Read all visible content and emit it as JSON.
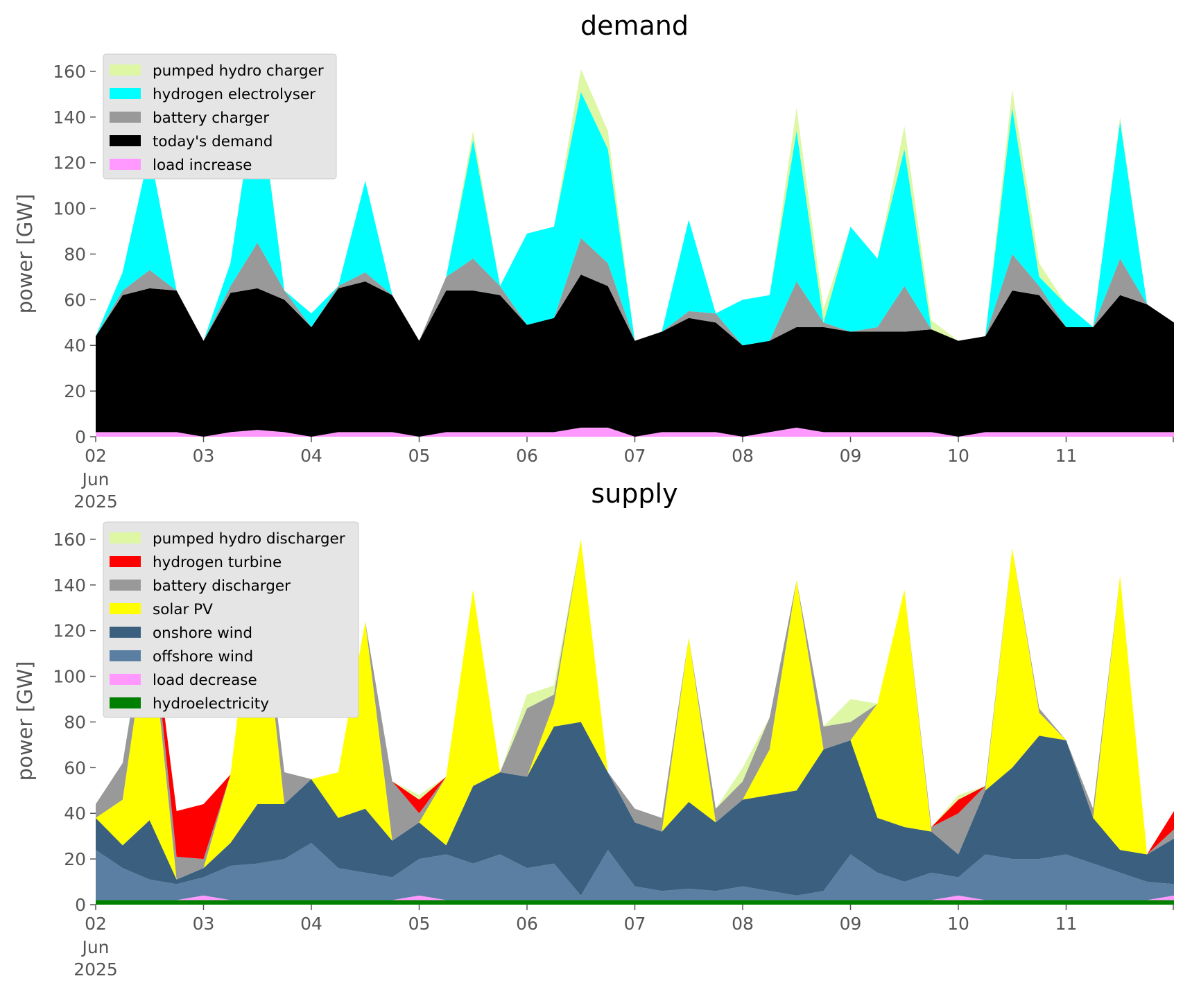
{
  "chart_data": [
    {
      "type": "area",
      "stacked": true,
      "title": "demand",
      "xlabel": "",
      "ylabel": "power [GW]",
      "x_ticks": [
        "02",
        "03",
        "04",
        "05",
        "06",
        "07",
        "08",
        "09",
        "10",
        "11"
      ],
      "x_tick_sub": [
        "Jun",
        "2025"
      ],
      "x_tick_days": [
        2,
        3,
        4,
        5,
        6,
        7,
        8,
        9,
        10,
        11
      ],
      "xlim_days": [
        2,
        12
      ],
      "y_ticks": [
        "0",
        "20",
        "40",
        "60",
        "80",
        "100",
        "120",
        "140",
        "160"
      ],
      "ylim": [
        0,
        170
      ],
      "grid": false,
      "legend": "top-left",
      "x_days": [
        2.0,
        2.25,
        2.5,
        2.75,
        3.0,
        3.25,
        3.5,
        3.75,
        4.0,
        4.25,
        4.5,
        4.75,
        5.0,
        5.25,
        5.5,
        5.75,
        6.0,
        6.25,
        6.5,
        6.75,
        7.0,
        7.25,
        7.5,
        7.75,
        8.0,
        8.25,
        8.5,
        8.75,
        9.0,
        9.25,
        9.5,
        9.75,
        10.0,
        10.25,
        10.5,
        10.75,
        11.0,
        11.25,
        11.5,
        11.75,
        12.0
      ],
      "series": [
        {
          "name": "load increase",
          "color": "#ff99ff",
          "values": [
            2,
            2,
            2,
            2,
            0,
            2,
            3,
            2,
            0,
            2,
            2,
            2,
            0,
            2,
            2,
            2,
            2,
            2,
            4,
            4,
            0,
            2,
            2,
            2,
            0,
            2,
            4,
            2,
            2,
            2,
            2,
            2,
            0,
            2,
            2,
            2,
            2,
            2,
            2,
            2,
            2
          ]
        },
        {
          "name": "today's demand",
          "color": "#000000",
          "values": [
            42,
            60,
            63,
            62,
            42,
            61,
            62,
            58,
            48,
            63,
            66,
            60,
            42,
            62,
            62,
            60,
            47,
            50,
            67,
            62,
            42,
            44,
            50,
            48,
            40,
            40,
            44,
            46,
            44,
            44,
            44,
            45,
            42,
            42,
            62,
            60,
            46,
            46,
            60,
            56,
            48
          ]
        },
        {
          "name": "battery charger",
          "color": "#999999",
          "values": [
            0,
            2,
            8,
            0,
            0,
            3,
            20,
            4,
            0,
            1,
            4,
            0,
            0,
            6,
            14,
            4,
            0,
            0,
            16,
            10,
            0,
            0,
            3,
            4,
            0,
            0,
            20,
            2,
            0,
            2,
            20,
            0,
            0,
            0,
            16,
            4,
            0,
            0,
            16,
            0,
            0
          ]
        },
        {
          "name": "hydrogen electrolyser",
          "color": "#00ffff",
          "values": [
            0,
            8,
            52,
            0,
            0,
            10,
            70,
            0,
            6,
            0,
            40,
            0,
            0,
            0,
            52,
            0,
            40,
            40,
            64,
            50,
            0,
            0,
            40,
            0,
            20,
            20,
            66,
            0,
            46,
            30,
            60,
            0,
            0,
            0,
            64,
            4,
            10,
            0,
            60,
            0,
            0
          ]
        },
        {
          "name": "pumped hydro charger",
          "color": "#ddf7a5",
          "values": [
            0,
            0,
            0,
            0,
            0,
            0,
            2,
            0,
            0,
            0,
            0,
            0,
            0,
            0,
            4,
            0,
            0,
            0,
            10,
            8,
            0,
            0,
            0,
            0,
            0,
            0,
            10,
            6,
            0,
            0,
            10,
            4,
            0,
            0,
            8,
            6,
            0,
            0,
            2,
            0,
            0
          ]
        }
      ]
    },
    {
      "type": "area",
      "stacked": true,
      "title": "supply",
      "xlabel": "",
      "ylabel": "power [GW]",
      "x_ticks": [
        "02",
        "03",
        "04",
        "05",
        "06",
        "07",
        "08",
        "09",
        "10",
        "11"
      ],
      "x_tick_sub": [
        "Jun",
        "2025"
      ],
      "x_tick_days": [
        2,
        3,
        4,
        5,
        6,
        7,
        8,
        9,
        10,
        11
      ],
      "xlim_days": [
        2,
        12
      ],
      "y_ticks": [
        "0",
        "20",
        "40",
        "60",
        "80",
        "100",
        "120",
        "140",
        "160"
      ],
      "ylim": [
        0,
        170
      ],
      "grid": false,
      "legend": "top-left",
      "x_days": [
        2.0,
        2.25,
        2.5,
        2.75,
        3.0,
        3.25,
        3.5,
        3.75,
        4.0,
        4.25,
        4.5,
        4.75,
        5.0,
        5.25,
        5.5,
        5.75,
        6.0,
        6.25,
        6.5,
        6.75,
        7.0,
        7.25,
        7.5,
        7.75,
        8.0,
        8.25,
        8.5,
        8.75,
        9.0,
        9.25,
        9.5,
        9.75,
        10.0,
        10.25,
        10.5,
        10.75,
        11.0,
        11.25,
        11.5,
        11.75,
        12.0
      ],
      "series": [
        {
          "name": "hydroelectricity",
          "color": "#008000",
          "values": [
            2,
            2,
            2,
            2,
            2,
            2,
            2,
            2,
            2,
            2,
            2,
            2,
            2,
            2,
            2,
            2,
            2,
            2,
            2,
            2,
            2,
            2,
            2,
            2,
            2,
            2,
            2,
            2,
            2,
            2,
            2,
            2,
            2,
            2,
            2,
            2,
            2,
            2,
            2,
            2,
            2
          ]
        },
        {
          "name": "load decrease",
          "color": "#ff99ff",
          "values": [
            0,
            0,
            0,
            0,
            2,
            0,
            0,
            0,
            0,
            0,
            0,
            0,
            2,
            0,
            0,
            0,
            0,
            0,
            0,
            0,
            0,
            0,
            0,
            0,
            0,
            0,
            0,
            0,
            0,
            0,
            0,
            0,
            2,
            0,
            0,
            0,
            0,
            0,
            0,
            0,
            2
          ]
        },
        {
          "name": "offshore wind",
          "color": "#5b7fa3",
          "values": [
            22,
            14,
            9,
            7,
            8,
            15,
            16,
            18,
            25,
            14,
            12,
            10,
            16,
            20,
            16,
            20,
            14,
            16,
            2,
            22,
            6,
            4,
            5,
            4,
            6,
            4,
            2,
            4,
            20,
            12,
            8,
            12,
            8,
            20,
            18,
            18,
            20,
            16,
            12,
            8,
            5
          ]
        },
        {
          "name": "onshore wind",
          "color": "#3b607f",
          "values": [
            14,
            10,
            26,
            2,
            4,
            10,
            26,
            24,
            28,
            22,
            28,
            16,
            16,
            4,
            34,
            36,
            40,
            60,
            76,
            34,
            28,
            26,
            38,
            30,
            38,
            42,
            46,
            62,
            50,
            24,
            24,
            18,
            10,
            28,
            40,
            54,
            50,
            20,
            10,
            12,
            20
          ]
        },
        {
          "name": "solar PV",
          "color": "#ffff00",
          "values": [
            0,
            20,
            90,
            0,
            0,
            30,
            110,
            0,
            0,
            20,
            82,
            0,
            0,
            30,
            86,
            0,
            0,
            10,
            80,
            0,
            0,
            0,
            72,
            0,
            0,
            20,
            92,
            0,
            0,
            50,
            104,
            0,
            0,
            0,
            96,
            10,
            0,
            0,
            120,
            0,
            0
          ]
        },
        {
          "name": "battery discharger",
          "color": "#999999",
          "values": [
            6,
            16,
            8,
            10,
            4,
            0,
            0,
            14,
            0,
            0,
            0,
            26,
            4,
            0,
            0,
            0,
            30,
            4,
            0,
            0,
            6,
            6,
            0,
            6,
            8,
            14,
            0,
            10,
            8,
            0,
            0,
            2,
            18,
            2,
            0,
            2,
            0,
            4,
            0,
            0,
            4
          ]
        },
        {
          "name": "hydrogen turbine",
          "color": "#ff0000",
          "values": [
            0,
            0,
            0,
            20,
            24,
            0,
            0,
            0,
            0,
            0,
            0,
            0,
            6,
            0,
            0,
            0,
            0,
            0,
            0,
            0,
            0,
            0,
            0,
            0,
            0,
            0,
            0,
            0,
            0,
            0,
            0,
            0,
            6,
            0,
            0,
            0,
            0,
            0,
            0,
            0,
            8
          ]
        },
        {
          "name": "pumped hydro discharger",
          "color": "#ddf7a5",
          "values": [
            0,
            0,
            0,
            0,
            0,
            0,
            0,
            0,
            0,
            0,
            0,
            0,
            2,
            0,
            0,
            0,
            6,
            4,
            0,
            0,
            0,
            0,
            0,
            0,
            6,
            0,
            0,
            0,
            10,
            0,
            0,
            0,
            2,
            0,
            0,
            0,
            0,
            0,
            0,
            0,
            0
          ]
        }
      ]
    }
  ]
}
